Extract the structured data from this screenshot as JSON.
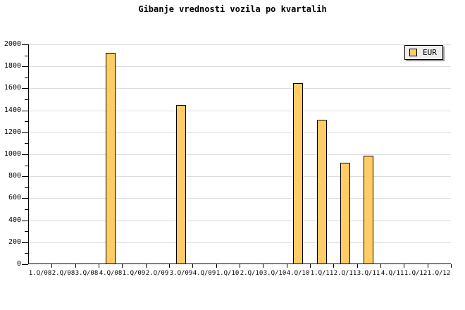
{
  "chart_data": {
    "type": "bar",
    "title": "Gibanje vrednosti vozila po kvartalih",
    "categories": [
      "1.Q/08",
      "2.Q/08",
      "3.Q/08",
      "4.Q/08",
      "1.Q/09",
      "2.Q/09",
      "3.Q/09",
      "4.Q/09",
      "1.Q/10",
      "2.Q/10",
      "3.Q/10",
      "4.Q/10",
      "1.Q/11",
      "2.Q/11",
      "3.Q/11",
      "4.Q/11",
      "1.Q/12",
      "1.Q/12"
    ],
    "series": [
      {
        "name": "EUR",
        "values": [
          null,
          null,
          null,
          1920,
          null,
          null,
          1450,
          null,
          null,
          null,
          null,
          1650,
          1315,
          920,
          985,
          null,
          null,
          null
        ]
      }
    ],
    "xlabel": "",
    "ylabel": "",
    "ylim": [
      0,
      2000
    ],
    "y_major_step": 200,
    "y_minor_step": 100,
    "grid": true,
    "legend_position": "top-right"
  },
  "legend": {
    "items": [
      {
        "label": "EUR",
        "swatch_color": "#ffcc66"
      }
    ]
  },
  "colors": {
    "background": "#ffffff",
    "bar_fill": "#ffcc66",
    "bar_border": "#000000",
    "gridline": "#dddddd",
    "axis": "#000000",
    "legend_bg": "#eeeeee",
    "legend_border": "#000000",
    "legend_shadow": "#999999",
    "text": "#000000"
  }
}
